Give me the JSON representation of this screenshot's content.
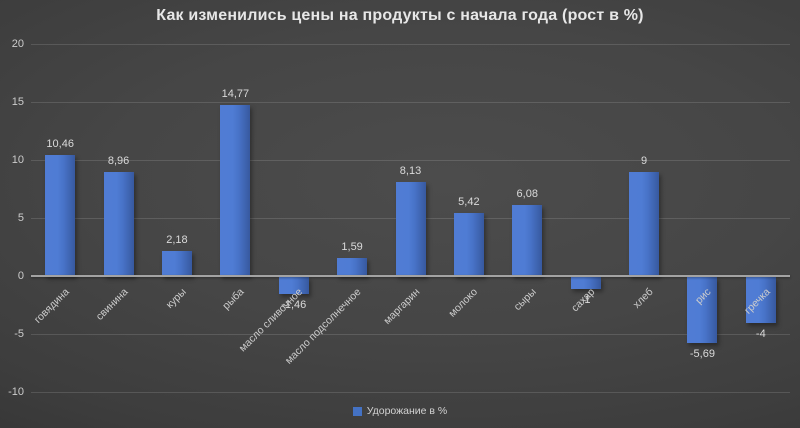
{
  "chart_data": {
    "type": "bar",
    "title": "Как изменились цены на продукты с начала года (рост в %)",
    "categories": [
      "говядина",
      "свинина",
      "куры",
      "рыба",
      "масло сливочное",
      "масло подсолнечное",
      "маргарин",
      "молоко",
      "сыры",
      "сахар",
      "хлеб",
      "рис",
      "гречка"
    ],
    "values": [
      10.46,
      8.96,
      2.18,
      14.77,
      -1.46,
      1.59,
      8.13,
      5.42,
      6.08,
      -1,
      9,
      -5.69,
      -4
    ],
    "value_labels": [
      "10,46",
      "8,96",
      "2,18",
      "14,77",
      "-1,46",
      "1,59",
      "8,13",
      "5,42",
      "6,08",
      "-1",
      "9",
      "-5,69",
      "-4"
    ],
    "series_name": "Удорожание в %",
    "y_ticks": [
      20,
      15,
      10,
      5,
      0,
      -5,
      -10
    ],
    "ylim": [
      -10,
      20
    ],
    "grid": true,
    "legend_position": "bottom",
    "bar_color": "#4472c4",
    "background_color": "#3f3f3f",
    "text_color": "#d9d9d9"
  }
}
